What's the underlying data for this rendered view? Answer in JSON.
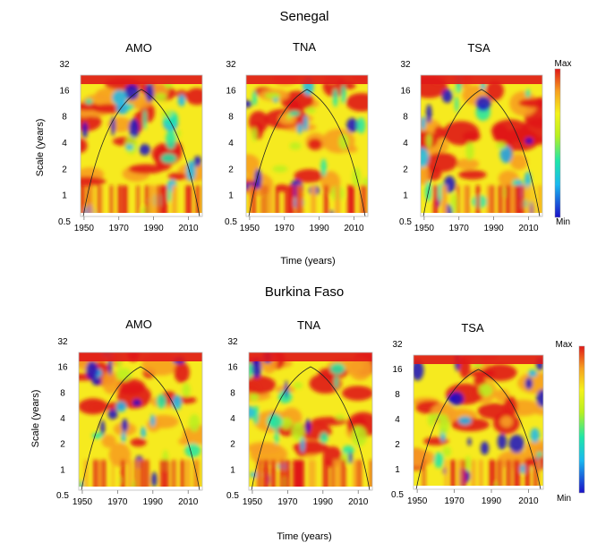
{
  "chart_data": {
    "type": "heatmap",
    "description_note": "",
    "scale_ticks": [
      "0.5",
      "1",
      "2",
      "4",
      "8",
      "16",
      "32"
    ],
    "colorbar": {
      "max_label": "Max",
      "min_label": "Min",
      "colors": [
        "#1a10c8",
        "#19b8f0",
        "#1fe6a8",
        "#b8f020",
        "#f4f21a",
        "#f7a020",
        "#e01818"
      ]
    },
    "regions": [
      {
        "title": "Senegal",
        "ylabel": "Scale (years)",
        "xlabel": "Time (years)",
        "panels": [
          {
            "title": "AMO",
            "xticks": [
              "1950",
              "1970",
              "1990",
              "2010"
            ],
            "xlim": [
              1948,
              2018
            ],
            "ylim": [
              0.5,
              32
            ]
          },
          {
            "title": "TNA",
            "xticks": [
              "1950",
              "1970",
              "1990",
              "2010"
            ],
            "xlim": [
              1948,
              2018
            ],
            "ylim": [
              0.5,
              32
            ]
          },
          {
            "title": "TSA",
            "xticks": [
              "1950",
              "1970",
              "1990",
              "2010"
            ],
            "xlim": [
              1948,
              2018
            ],
            "ylim": [
              0.5,
              32
            ]
          }
        ]
      },
      {
        "title": "Burkina Faso",
        "ylabel": "Scale (years)",
        "xlabel": "Time (years)",
        "panels": [
          {
            "title": "AMO",
            "xticks": [
              "1950",
              "1970",
              "1990",
              "2010"
            ],
            "xlim": [
              1948,
              2018
            ],
            "ylim": [
              0.5,
              32
            ]
          },
          {
            "title": "TNA",
            "xticks": [
              "1950",
              "1970",
              "1990",
              "2010"
            ],
            "xlim": [
              1948,
              2018
            ],
            "ylim": [
              0.5,
              32
            ]
          },
          {
            "title": "TSA",
            "xticks": [
              "1950",
              "1970",
              "1990",
              "2010"
            ],
            "xlim": [
              1948,
              2018
            ],
            "ylim": [
              0.5,
              32
            ]
          }
        ]
      }
    ]
  }
}
